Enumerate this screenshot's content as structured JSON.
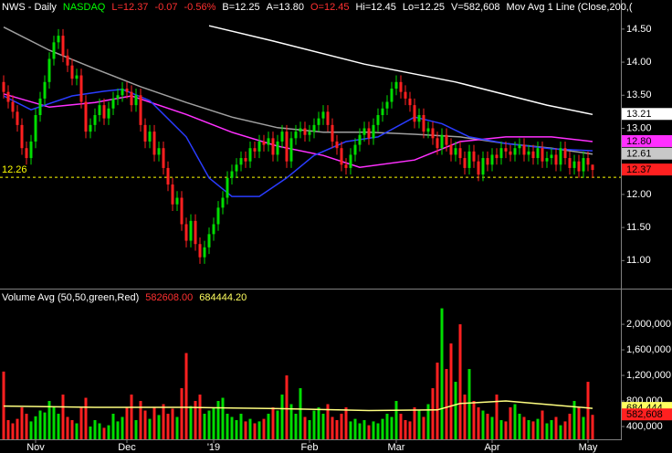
{
  "chart_data": [
    {
      "type": "candlestick",
      "header": [
        {
          "text": "NWS - Daily",
          "color": "#ffffff"
        },
        {
          "text": "NASDAQ",
          "color": "#00ff00"
        },
        {
          "text": "L=12.37",
          "color": "#ff3030"
        },
        {
          "text": "-0.07",
          "color": "#ff3030"
        },
        {
          "text": "-0.56%",
          "color": "#ff3030"
        },
        {
          "text": "B=12.25",
          "color": "#ffffff"
        },
        {
          "text": "A=13.80",
          "color": "#ffffff"
        },
        {
          "text": "O=12.45",
          "color": "#ff3030"
        },
        {
          "text": "Hi=12.45",
          "color": "#ffffff"
        },
        {
          "text": "Lo=12.25",
          "color": "#ffffff"
        },
        {
          "text": "V=582,608",
          "color": "#ffffff"
        },
        {
          "text": "Mov Avg 1 Line (Close,200,(",
          "color": "#ffffff"
        }
      ],
      "open": [
        13.7,
        13.55,
        13.4,
        13.25,
        13.05,
        12.7,
        12.55,
        12.8,
        13.2,
        13.45,
        13.7,
        14.05,
        14.3,
        14.4,
        14.1,
        13.95,
        13.75,
        13.8,
        13.4,
        12.95,
        13.05,
        13.2,
        13.35,
        13.15,
        13.3,
        13.45,
        13.5,
        13.6,
        13.55,
        13.35,
        13.5,
        13.05,
        12.8,
        12.95,
        12.6,
        12.7,
        12.4,
        12.15,
        11.85,
        11.95,
        11.55,
        11.3,
        11.6,
        11.25,
        11.05,
        11.2,
        11.4,
        11.55,
        11.8,
        11.95,
        12.25,
        12.35,
        12.45,
        12.55,
        12.5,
        12.7,
        12.65,
        12.8,
        12.75,
        12.85,
        12.6,
        12.8,
        12.95,
        12.5,
        12.85,
        12.95,
        13.0,
        12.9,
        12.95,
        13.05,
        13.15,
        13.25,
        13.05,
        12.8,
        12.7,
        12.45,
        12.4,
        12.6,
        12.75,
        12.9,
        13.0,
        12.85,
        13.05,
        13.2,
        13.3,
        13.4,
        13.6,
        13.7,
        13.55,
        13.45,
        13.35,
        13.1,
        13.2,
        12.95,
        13.0,
        12.85,
        12.7,
        12.9,
        12.75,
        12.6,
        12.7,
        12.55,
        12.4,
        12.65,
        12.5,
        12.3,
        12.55,
        12.45,
        12.6,
        12.55,
        12.7,
        12.65,
        12.6,
        12.7,
        12.75,
        12.6,
        12.65,
        12.55,
        12.7,
        12.5,
        12.55,
        12.6,
        12.45,
        12.7,
        12.55,
        12.4,
        12.5,
        12.35,
        12.55,
        12.45
      ],
      "high": [
        13.8,
        13.65,
        13.5,
        13.35,
        13.15,
        12.8,
        12.9,
        13.3,
        13.55,
        13.8,
        14.15,
        14.4,
        14.5,
        14.5,
        14.2,
        14.05,
        13.9,
        13.9,
        13.5,
        13.15,
        13.3,
        13.45,
        13.45,
        13.4,
        13.55,
        13.6,
        13.7,
        13.7,
        13.65,
        13.6,
        13.6,
        13.15,
        13.05,
        13.05,
        12.8,
        12.8,
        12.5,
        12.25,
        12.05,
        12.05,
        11.65,
        11.7,
        11.7,
        11.35,
        11.3,
        11.5,
        11.65,
        11.9,
        12.05,
        12.35,
        12.45,
        12.55,
        12.65,
        12.65,
        12.8,
        12.8,
        12.9,
        12.9,
        12.95,
        12.95,
        12.9,
        13.05,
        13.05,
        12.95,
        13.05,
        13.1,
        13.1,
        13.05,
        13.15,
        13.25,
        13.35,
        13.35,
        13.15,
        12.9,
        12.8,
        12.55,
        12.7,
        12.85,
        13.0,
        13.1,
        13.1,
        13.15,
        13.3,
        13.4,
        13.5,
        13.7,
        13.8,
        13.8,
        13.65,
        13.55,
        13.45,
        13.3,
        13.3,
        13.1,
        13.1,
        12.95,
        13.0,
        13.0,
        12.85,
        12.8,
        12.8,
        12.65,
        12.75,
        12.75,
        12.6,
        12.65,
        12.65,
        12.7,
        12.7,
        12.8,
        12.8,
        12.75,
        12.8,
        12.85,
        12.85,
        12.75,
        12.75,
        12.8,
        12.8,
        12.65,
        12.7,
        12.7,
        12.8,
        12.8,
        12.65,
        12.6,
        12.6,
        12.65,
        12.65,
        12.45
      ],
      "low": [
        13.45,
        13.3,
        13.15,
        12.95,
        12.6,
        12.45,
        12.45,
        12.7,
        13.1,
        13.35,
        13.6,
        13.95,
        14.2,
        14.0,
        13.85,
        13.65,
        13.65,
        13.3,
        12.85,
        12.85,
        12.95,
        13.1,
        13.05,
        13.05,
        13.2,
        13.35,
        13.4,
        13.45,
        13.25,
        13.25,
        12.95,
        12.7,
        12.7,
        12.5,
        12.5,
        12.3,
        12.05,
        11.75,
        11.75,
        11.45,
        11.2,
        11.2,
        11.15,
        10.95,
        10.95,
        11.1,
        11.3,
        11.45,
        11.7,
        11.85,
        12.15,
        12.25,
        12.35,
        12.4,
        12.4,
        12.55,
        12.55,
        12.65,
        12.65,
        12.5,
        12.5,
        12.7,
        12.4,
        12.4,
        12.75,
        12.85,
        12.8,
        12.8,
        12.85,
        12.95,
        13.05,
        12.95,
        12.7,
        12.6,
        12.35,
        12.3,
        12.3,
        12.5,
        12.65,
        12.8,
        12.75,
        12.75,
        12.95,
        13.1,
        13.2,
        13.3,
        13.5,
        13.45,
        13.35,
        13.25,
        13.0,
        13.0,
        12.85,
        12.85,
        12.75,
        12.6,
        12.6,
        12.65,
        12.5,
        12.5,
        12.45,
        12.3,
        12.3,
        12.4,
        12.2,
        12.2,
        12.35,
        12.35,
        12.45,
        12.45,
        12.55,
        12.5,
        12.5,
        12.6,
        12.5,
        12.5,
        12.45,
        12.45,
        12.4,
        12.4,
        12.45,
        12.35,
        12.35,
        12.45,
        12.3,
        12.3,
        12.25,
        12.25,
        12.35,
        12.25
      ],
      "close": [
        13.55,
        13.4,
        13.25,
        13.05,
        12.7,
        12.55,
        12.8,
        13.2,
        13.45,
        13.7,
        14.05,
        14.3,
        14.4,
        14.1,
        13.95,
        13.75,
        13.8,
        13.4,
        12.95,
        13.05,
        13.2,
        13.35,
        13.15,
        13.3,
        13.45,
        13.5,
        13.6,
        13.55,
        13.35,
        13.5,
        13.05,
        12.8,
        12.95,
        12.6,
        12.7,
        12.4,
        12.15,
        11.85,
        11.95,
        11.55,
        11.3,
        11.6,
        11.25,
        11.05,
        11.2,
        11.4,
        11.55,
        11.8,
        11.95,
        12.25,
        12.35,
        12.45,
        12.55,
        12.5,
        12.7,
        12.65,
        12.8,
        12.75,
        12.85,
        12.6,
        12.8,
        12.95,
        12.5,
        12.85,
        12.95,
        13.0,
        12.9,
        12.95,
        13.05,
        13.15,
        13.25,
        13.05,
        12.8,
        12.7,
        12.45,
        12.4,
        12.6,
        12.75,
        12.9,
        13.0,
        12.85,
        13.05,
        13.2,
        13.3,
        13.4,
        13.6,
        13.7,
        13.55,
        13.45,
        13.35,
        13.1,
        13.2,
        12.95,
        13.0,
        12.85,
        12.7,
        12.9,
        12.75,
        12.6,
        12.7,
        12.55,
        12.4,
        12.65,
        12.5,
        12.3,
        12.55,
        12.45,
        12.6,
        12.55,
        12.7,
        12.65,
        12.6,
        12.7,
        12.75,
        12.6,
        12.65,
        12.55,
        12.7,
        12.5,
        12.55,
        12.6,
        12.45,
        12.7,
        12.55,
        12.4,
        12.5,
        12.35,
        12.55,
        12.45,
        12.37
      ],
      "up_color": "#00dd00",
      "down_color": "#ff2020",
      "xlim": [
        -0.8,
        135.2
      ],
      "ylim": [
        10.59,
        14.94
      ],
      "yticks": [
        {
          "value": 11,
          "label": "11.00"
        },
        {
          "value": 11.5,
          "label": "11.50"
        },
        {
          "value": 12,
          "label": "12.00"
        },
        {
          "value": 13,
          "label": "13.00"
        },
        {
          "value": 13.5,
          "label": "13.50"
        },
        {
          "value": 14,
          "label": "14.00"
        },
        {
          "value": 14.5,
          "label": "14.50"
        }
      ],
      "series": [
        {
          "color": "#ffffff",
          "x": [
            45,
            59,
            79,
            99,
            119,
            129
          ],
          "values": [
            14.55,
            14.32,
            13.97,
            13.7,
            13.35,
            13.21
          ]
        },
        {
          "color": "#a0a0a0",
          "x": [
            0,
            10,
            20,
            30,
            40,
            50,
            60,
            70,
            80,
            90,
            100,
            110,
            120,
            129
          ],
          "values": [
            14.53,
            14.18,
            13.9,
            13.63,
            13.39,
            13.17,
            13.01,
            12.94,
            12.94,
            12.91,
            12.87,
            12.77,
            12.7,
            12.61
          ]
        },
        {
          "color": "#ff30ff",
          "x": [
            0,
            10,
            20,
            28,
            40,
            50,
            60,
            70,
            78,
            90,
            100,
            110,
            120,
            129
          ],
          "values": [
            13.52,
            13.32,
            13.39,
            13.49,
            13.21,
            12.94,
            12.73,
            12.59,
            12.41,
            12.52,
            12.8,
            12.87,
            12.87,
            12.8
          ]
        },
        {
          "color": "#2a3cff",
          "x": [
            0,
            6,
            15,
            22,
            26,
            32,
            40,
            45,
            50,
            56,
            62,
            68,
            75,
            82,
            90,
            96,
            102,
            110,
            120,
            129
          ],
          "values": [
            13.49,
            13.28,
            13.49,
            13.56,
            13.59,
            13.42,
            12.87,
            12.25,
            11.97,
            11.97,
            12.25,
            12.59,
            12.8,
            12.87,
            13.17,
            13.07,
            12.87,
            12.77,
            12.69,
            12.66
          ]
        }
      ],
      "markers": [
        {
          "value": 13.21,
          "label": "13.21",
          "color": "#ffffff",
          "text_color": "#000000"
        },
        {
          "value": 12.8,
          "label": "12.80",
          "color": "#ff30ff",
          "text_color": "#000000"
        },
        {
          "value": 12.61,
          "label": "12.61",
          "color": "#c8c8c8",
          "text_color": "#000000"
        },
        {
          "value": 12.37,
          "label": "12.37",
          "color": "#ff2020",
          "text_color": "#000000"
        }
      ],
      "hline": {
        "value": 12.26,
        "label": "12.26",
        "color": "#ffff00"
      }
    },
    {
      "type": "bar",
      "legend": [
        {
          "text": "Volume Avg (50,50,green,Red)",
          "color": "#ffffff"
        },
        {
          "text": "582608.00",
          "color": "#ff3030"
        },
        {
          "text": "684444.20",
          "color": "#ffff60"
        }
      ],
      "values": [
        1260000,
        500000,
        450000,
        520000,
        700000,
        600000,
        480000,
        560000,
        650000,
        620000,
        800000,
        700000,
        600000,
        900000,
        550000,
        500000,
        450000,
        700000,
        850000,
        400000,
        500000,
        450000,
        380000,
        420000,
        600000,
        480000,
        550000,
        700000,
        900000,
        500000,
        800000,
        650000,
        520000,
        700000,
        580000,
        750000,
        600000,
        680000,
        550000,
        1000000,
        1550000,
        720000,
        800000,
        900000,
        600000,
        650000,
        700000,
        800000,
        850000,
        600000,
        550000,
        500000,
        600000,
        480000,
        520000,
        450000,
        480000,
        520000,
        600000,
        700000,
        650000,
        900000,
        1200000,
        750000,
        600000,
        1000000,
        550000,
        500000,
        650000,
        700000,
        600000,
        750000,
        550000,
        500000,
        600000,
        700000,
        480000,
        520000,
        450000,
        500000,
        420000,
        480000,
        450000,
        520000,
        600000,
        550000,
        800000,
        600000,
        500000,
        480000,
        700000,
        650000,
        550000,
        750000,
        1000000,
        1400000,
        2250000,
        1300000,
        1700000,
        1100000,
        2000000,
        900000,
        1300000,
        800000,
        700000,
        650000,
        600000,
        550000,
        900000,
        500000,
        480000,
        700000,
        750000,
        600000,
        550000,
        500000,
        480000,
        520000,
        650000,
        450000,
        500000,
        550000,
        420000,
        480000,
        600000,
        800000,
        700000,
        550000,
        1100000,
        582608
      ],
      "xlim": [
        -0.8,
        135.2
      ],
      "xticks": [
        {
          "value": 7,
          "label": "Nov"
        },
        {
          "value": 27,
          "label": "Dec"
        },
        {
          "value": 46,
          "label": "'19"
        },
        {
          "value": 67,
          "label": "Feb"
        },
        {
          "value": 86,
          "label": "Mar"
        },
        {
          "value": 107,
          "label": "Apr"
        },
        {
          "value": 128,
          "label": "May"
        }
      ],
      "ylim": [
        200000,
        2530000
      ],
      "yticks": [
        {
          "value": 400000,
          "label": "400,000"
        },
        {
          "value": 800000,
          "label": "800,000"
        },
        {
          "value": 1200000,
          "label": "1,200,000"
        },
        {
          "value": 1600000,
          "label": "1,600,000"
        },
        {
          "value": 2000000,
          "label": "2,000,000"
        }
      ],
      "series": [
        {
          "color": "#ffff80",
          "x": [
            0,
            20,
            40,
            60,
            80,
            95,
            100,
            110,
            120,
            129
          ],
          "values": [
            720000,
            700000,
            700000,
            680000,
            650000,
            660000,
            760000,
            800000,
            740000,
            684444.2
          ]
        }
      ],
      "markers": [
        {
          "value": 684444.2,
          "label": "684,444",
          "color": "#ffff60",
          "text_color": "#000000"
        },
        {
          "value": 582608,
          "label": "582,608",
          "color": "#ff2020",
          "text_color": "#000000"
        }
      ]
    }
  ]
}
